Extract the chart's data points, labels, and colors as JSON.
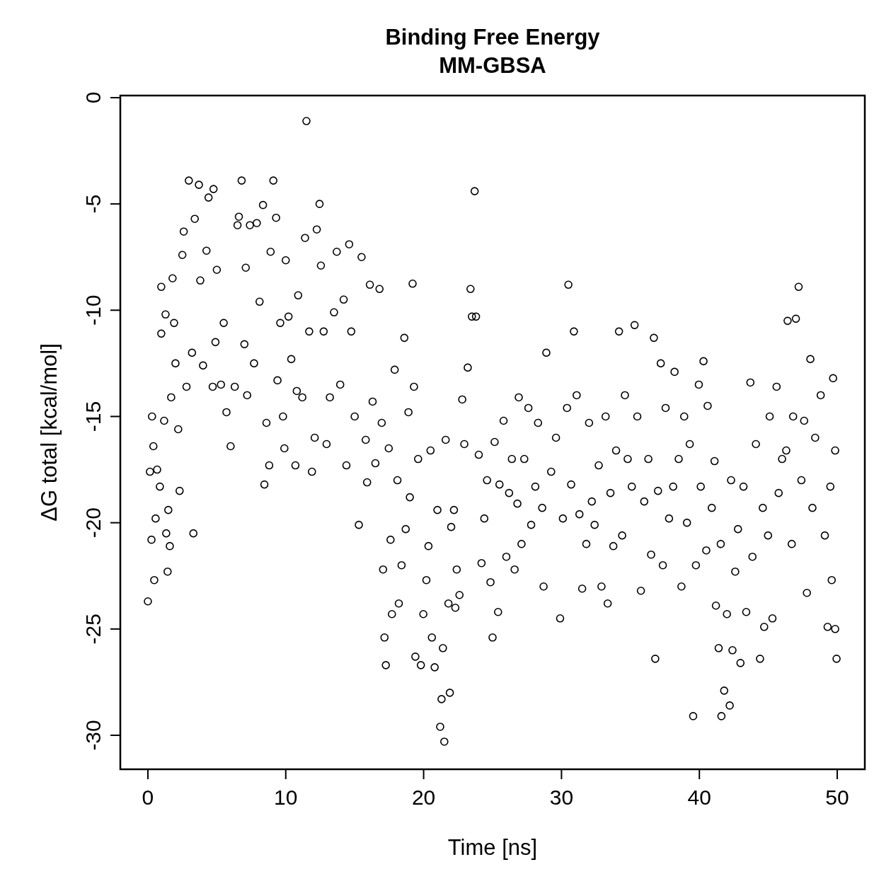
{
  "chart_data": {
    "type": "scatter",
    "title": "Binding Free Energy",
    "subtitle": "MM-GBSA",
    "xlabel": "Time [ns]",
    "ylabel": "ΔG total [kcal/mol]",
    "xlim": [
      -2,
      52
    ],
    "ylim": [
      -31.6,
      0.1
    ],
    "xticks": [
      0,
      10,
      20,
      30,
      40,
      50
    ],
    "yticks": [
      0,
      -5,
      -10,
      -15,
      -20,
      -25,
      -30
    ],
    "grid": false,
    "marker": "circle",
    "series": [
      {
        "color": "#000000",
        "x": [
          0.0,
          0.15,
          0.26,
          0.3,
          0.4,
          0.46,
          0.56,
          0.67,
          0.87,
          0.97,
          0.97,
          1.18,
          1.28,
          1.33,
          1.43,
          1.48,
          1.59,
          1.69,
          1.79,
          1.9,
          2.0,
          2.2,
          2.3,
          2.5,
          2.6,
          2.8,
          2.97,
          3.2,
          3.3,
          3.4,
          3.7,
          3.8,
          4.0,
          4.25,
          4.4,
          4.76,
          4.7,
          4.9,
          5.0,
          5.3,
          5.5,
          5.7,
          6.0,
          6.3,
          6.5,
          6.6,
          6.8,
          7.0,
          7.1,
          7.2,
          7.4,
          7.7,
          7.9,
          8.1,
          8.35,
          8.45,
          8.6,
          8.8,
          8.9,
          9.1,
          9.3,
          9.4,
          9.6,
          9.8,
          9.9,
          10.0,
          10.2,
          10.4,
          10.7,
          10.8,
          10.9,
          11.2,
          11.4,
          11.5,
          11.7,
          11.9,
          12.1,
          12.25,
          12.45,
          12.55,
          12.75,
          12.96,
          13.2,
          13.5,
          13.7,
          13.95,
          14.2,
          14.4,
          14.6,
          14.75,
          15.0,
          15.3,
          15.5,
          15.8,
          15.9,
          16.1,
          16.3,
          16.5,
          16.8,
          16.96,
          17.06,
          17.16,
          17.26,
          17.47,
          17.6,
          17.7,
          17.9,
          18.1,
          18.2,
          18.4,
          18.6,
          18.7,
          18.9,
          19.0,
          19.2,
          19.3,
          19.4,
          19.6,
          19.8,
          19.98,
          20.2,
          20.35,
          20.5,
          20.6,
          20.8,
          21.0,
          21.2,
          21.3,
          21.4,
          21.5,
          21.6,
          21.8,
          21.9,
          22.0,
          22.2,
          22.3,
          22.4,
          22.6,
          22.8,
          22.95,
          23.2,
          23.4,
          23.5,
          23.7,
          23.8,
          24.0,
          24.2,
          24.4,
          24.6,
          24.85,
          25.0,
          25.15,
          25.4,
          25.5,
          25.8,
          26.0,
          26.2,
          26.4,
          26.6,
          26.8,
          26.9,
          27.1,
          27.3,
          27.6,
          27.8,
          28.1,
          28.3,
          28.6,
          28.7,
          28.9,
          29.25,
          29.6,
          29.9,
          30.1,
          30.4,
          30.5,
          30.7,
          30.9,
          31.1,
          31.3,
          31.5,
          31.8,
          32.0,
          32.2,
          32.4,
          32.7,
          32.9,
          33.2,
          33.35,
          33.55,
          33.76,
          33.96,
          34.17,
          34.4,
          34.6,
          34.8,
          35.1,
          35.3,
          35.5,
          35.76,
          36.0,
          36.3,
          36.5,
          36.7,
          36.8,
          37.0,
          37.2,
          37.35,
          37.55,
          37.8,
          38.1,
          38.2,
          38.5,
          38.7,
          38.9,
          39.1,
          39.3,
          39.55,
          39.75,
          39.96,
          40.1,
          40.3,
          40.5,
          40.6,
          40.9,
          41.1,
          41.2,
          41.4,
          41.55,
          41.6,
          41.8,
          42.0,
          42.2,
          42.3,
          42.4,
          42.6,
          42.8,
          42.98,
          43.2,
          43.4,
          43.7,
          43.85,
          44.1,
          44.4,
          44.6,
          44.7,
          44.98,
          45.1,
          45.3,
          45.6,
          45.75,
          46.0,
          46.3,
          46.4,
          46.7,
          46.8,
          47.0,
          47.2,
          47.4,
          47.6,
          47.8,
          48.05,
          48.2,
          48.4,
          48.8,
          49.1,
          49.3,
          49.5,
          49.6,
          49.7,
          49.85,
          49.95,
          49.85
        ],
        "values": [
          -23.7,
          -17.6,
          -20.8,
          -15.0,
          -16.4,
          -22.7,
          -19.8,
          -17.5,
          -18.3,
          -11.1,
          -8.9,
          -15.2,
          -10.2,
          -20.5,
          -22.3,
          -19.4,
          -21.1,
          -14.1,
          -8.5,
          -10.6,
          -12.5,
          -15.6,
          -18.5,
          -7.4,
          -6.3,
          -13.6,
          -3.9,
          -12.0,
          -20.5,
          -5.7,
          -4.1,
          -8.6,
          -12.6,
          -7.2,
          -4.7,
          -4.3,
          -13.6,
          -11.5,
          -8.1,
          -13.5,
          -10.6,
          -14.8,
          -16.4,
          -13.6,
          -6.0,
          -5.6,
          -3.9,
          -11.6,
          -8.0,
          -14.0,
          -6.0,
          -12.5,
          -5.9,
          -9.6,
          -5.05,
          -18.2,
          -15.3,
          -17.3,
          -7.25,
          -3.9,
          -5.65,
          -13.3,
          -10.6,
          -15.0,
          -16.5,
          -7.65,
          -10.3,
          -12.3,
          -17.3,
          -13.8,
          -9.3,
          -14.1,
          -6.6,
          -1.1,
          -11.0,
          -17.6,
          -16.0,
          -6.2,
          -5.0,
          -7.9,
          -11.0,
          -16.3,
          -14.1,
          -10.1,
          -7.25,
          -13.5,
          -9.5,
          -17.3,
          -6.9,
          -11.0,
          -15.0,
          -20.1,
          -7.5,
          -16.1,
          -18.1,
          -8.8,
          -14.3,
          -17.2,
          -9.0,
          -15.3,
          -22.2,
          -25.4,
          -26.7,
          -16.5,
          -20.8,
          -24.3,
          -12.8,
          -18.0,
          -23.8,
          -22.0,
          -11.3,
          -20.3,
          -14.8,
          -18.8,
          -8.75,
          -13.6,
          -26.3,
          -17.0,
          -26.7,
          -24.3,
          -22.7,
          -21.1,
          -16.6,
          -25.4,
          -26.8,
          -19.4,
          -29.6,
          -28.3,
          -25.9,
          -30.3,
          -16.1,
          -23.8,
          -28.0,
          -20.2,
          -19.4,
          -24.0,
          -22.2,
          -23.4,
          -14.2,
          -16.3,
          -12.7,
          -9.0,
          -10.3,
          -4.4,
          -10.3,
          -16.8,
          -21.9,
          -19.8,
          -18.0,
          -22.8,
          -25.4,
          -16.2,
          -24.2,
          -18.2,
          -15.2,
          -21.6,
          -18.6,
          -17.0,
          -22.2,
          -19.1,
          -14.1,
          -21.0,
          -17.0,
          -14.6,
          -20.1,
          -18.3,
          -15.3,
          -19.3,
          -23.0,
          -12.0,
          -17.6,
          -16.0,
          -24.5,
          -19.8,
          -14.6,
          -8.8,
          -18.2,
          -11.0,
          -14.0,
          -19.6,
          -23.1,
          -21.0,
          -15.3,
          -19.0,
          -20.1,
          -17.3,
          -23.0,
          -15.0,
          -23.8,
          -18.6,
          -21.1,
          -16.6,
          -11.0,
          -20.6,
          -14.0,
          -17.0,
          -18.3,
          -10.7,
          -15.0,
          -23.2,
          -19.0,
          -17.0,
          -21.5,
          -11.3,
          -26.4,
          -18.5,
          -12.5,
          -22.0,
          -14.6,
          -19.8,
          -18.3,
          -12.9,
          -17.0,
          -23.0,
          -15.0,
          -20.0,
          -16.3,
          -29.1,
          -22.0,
          -13.5,
          -18.3,
          -12.4,
          -21.3,
          -14.5,
          -19.3,
          -17.1,
          -23.9,
          -25.9,
          -21.0,
          -29.1,
          -27.9,
          -24.3,
          -28.6,
          -18.0,
          -26.0,
          -22.3,
          -20.3,
          -26.6,
          -18.3,
          -24.2,
          -13.4,
          -21.6,
          -16.3,
          -26.4,
          -19.3,
          -24.9,
          -20.6,
          -15.0,
          -24.5,
          -13.6,
          -18.6,
          -17.0,
          -16.6,
          -10.5,
          -21.0,
          -15.0,
          -10.4,
          -8.9,
          -18.0,
          -15.2,
          -23.3,
          -12.3,
          -19.3,
          -16.0,
          -14.0,
          -20.6,
          -24.9,
          -18.3,
          -22.7,
          -13.2,
          -25.0,
          -26.4,
          -16.6
        ]
      }
    ]
  }
}
